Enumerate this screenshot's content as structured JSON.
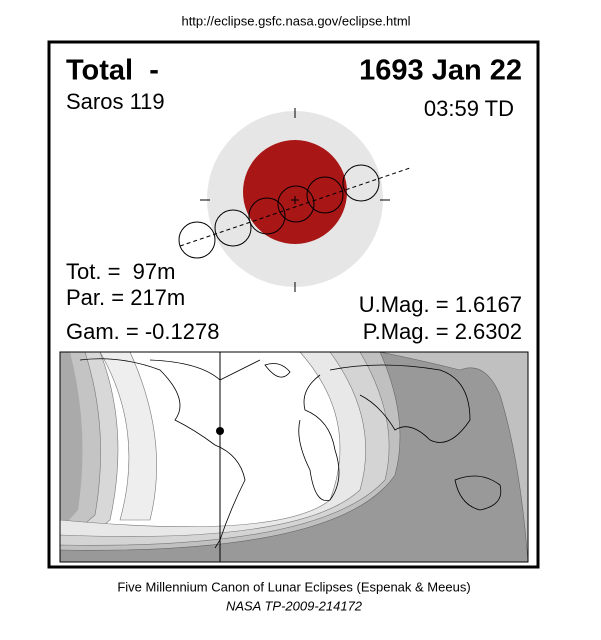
{
  "header": {
    "url": "http://eclipse.gsfc.nasa.gov/eclipse.html"
  },
  "eclipse": {
    "type": "Total  -",
    "date": "1693 Jan 22",
    "saros": "Saros 119",
    "time": "03:59 TD",
    "total_duration": "Tot. =  97m",
    "partial_duration": "Par. = 217m",
    "gamma": "Gam. = -0.1278",
    "umbral_magnitude": "U.Mag. = 1.6167",
    "penumbral_magnitude": "P.Mag. = 2.6302"
  },
  "footer": {
    "citation": "Five Millennium Canon of Lunar Eclipses (Espenak & Meeus)",
    "reference": "NASA TP-2009-214172"
  }
}
